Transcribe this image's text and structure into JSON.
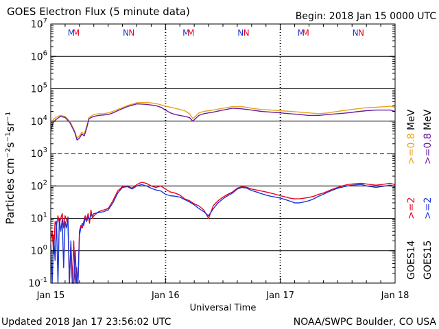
{
  "header": {
    "title": "GOES Electron Flux (5 minute data)",
    "begin": "Begin: 2018 Jan 15 0000 UTC"
  },
  "footer": {
    "updated": "Updated 2018 Jan 17 23:56:02 UTC",
    "credit": "NOAA/SWPC Boulder, CO USA"
  },
  "chart_data": {
    "type": "line",
    "title": "GOES Electron Flux (5 minute data)",
    "xlabel": "Universal Time",
    "ylabel": "Particles cm⁻²s⁻¹sr⁻¹",
    "yscale": "log",
    "ylim": [
      0.1,
      10000000
    ],
    "xlim": [
      0,
      72
    ],
    "x_units": "hours since 2018 Jan 15 0000 UTC",
    "x_tick_labels": [
      {
        "x": 0,
        "label": "Jan 15"
      },
      {
        "x": 24,
        "label": "Jan 16"
      },
      {
        "x": 48,
        "label": "Jan 17"
      },
      {
        "x": 72,
        "label": "Jan 18"
      }
    ],
    "y_ticks": [
      {
        "value": 0.1,
        "base": "10",
        "exp": "-1"
      },
      {
        "value": 1,
        "base": "10",
        "exp": "0"
      },
      {
        "value": 10,
        "base": "10",
        "exp": "1"
      },
      {
        "value": 100,
        "base": "10",
        "exp": "2"
      },
      {
        "value": 1000,
        "base": "10",
        "exp": "3"
      },
      {
        "value": 10000,
        "base": "10",
        "exp": "4"
      },
      {
        "value": 100000,
        "base": "10",
        "exp": "5"
      },
      {
        "value": 1000000,
        "base": "10",
        "exp": "6"
      },
      {
        "value": 10000000,
        "base": "10",
        "exp": "7"
      }
    ],
    "threshold_line": 1000,
    "grid": true,
    "legend": {
      "placement": "right-vertical",
      "entries": [
        {
          "satellite": "GOES14",
          "range": ">=2",
          "color": "#e8001c"
        },
        {
          "satellite": "GOES15",
          "range": ">=2",
          "color": "#1a35d8"
        },
        {
          "range": ">=0.8 MeV",
          "color": "#e8a317"
        },
        {
          "range": ">=0.8 MeV",
          "color": "#6a1aa8"
        }
      ],
      "sat_labels": [
        "GOES14",
        "GOES15"
      ],
      "range_labels": [
        ">=2",
        ">=2",
        ">=0.8",
        ">=0.8"
      ],
      "unit_labels": [
        "MeV",
        "MeV"
      ]
    },
    "markers": [
      {
        "x": 4.3,
        "label": "M",
        "color": "#1a35d8"
      },
      {
        "x": 5.3,
        "label": "M",
        "color": "#e8001c"
      },
      {
        "x": 15.7,
        "label": "N",
        "color": "#1a35d8"
      },
      {
        "x": 16.9,
        "label": "N",
        "color": "#e8001c"
      },
      {
        "x": 28.3,
        "label": "M",
        "color": "#1a35d8"
      },
      {
        "x": 29.3,
        "label": "M",
        "color": "#e8001c"
      },
      {
        "x": 39.7,
        "label": "N",
        "color": "#1a35d8"
      },
      {
        "x": 40.9,
        "label": "N",
        "color": "#e8001c"
      },
      {
        "x": 52.3,
        "label": "M",
        "color": "#1a35d8"
      },
      {
        "x": 53.3,
        "label": "M",
        "color": "#e8001c"
      },
      {
        "x": 63.7,
        "label": "N",
        "color": "#1a35d8"
      },
      {
        "x": 64.9,
        "label": "N",
        "color": "#e8001c"
      }
    ],
    "series": [
      {
        "name": "GOES14 >=0.8 MeV",
        "color": "#e8a317",
        "x": [
          0,
          0.5,
          1,
          2,
          3,
          4,
          5,
          5.5,
          6,
          6.5,
          7,
          7.5,
          8,
          9,
          10,
          11,
          12,
          13,
          14,
          16,
          18,
          20,
          22,
          23,
          24,
          25,
          26,
          27,
          28,
          29,
          29.7,
          30,
          31,
          32,
          33,
          34,
          36,
          38,
          40,
          42,
          44,
          46,
          48,
          50,
          52,
          54,
          56,
          58,
          60,
          62,
          64,
          66,
          68,
          70,
          71,
          72
        ],
        "y": [
          7000,
          11000,
          13000,
          15000,
          14000,
          10000,
          5000,
          3000,
          3500,
          4500,
          4000,
          7000,
          13000,
          16000,
          17000,
          17000,
          18000,
          20000,
          23000,
          30000,
          37000,
          38000,
          35000,
          32000,
          29000,
          27000,
          25000,
          23000,
          21000,
          17000,
          12000,
          13000,
          18000,
          20000,
          21000,
          22000,
          25000,
          28000,
          28000,
          25000,
          23000,
          22000,
          21000,
          20000,
          19000,
          18000,
          17000,
          18000,
          20000,
          22000,
          24000,
          26000,
          27000,
          28000,
          29000,
          27000
        ]
      },
      {
        "name": "GOES15 >=0.8 MeV",
        "color": "#6a1aa8",
        "x": [
          0,
          0.5,
          1,
          2,
          3,
          4,
          5,
          5.5,
          6,
          6.5,
          7,
          7.5,
          8,
          9,
          10,
          11,
          12,
          13,
          14,
          16,
          18,
          20,
          22,
          23,
          24,
          25,
          26,
          27,
          28,
          29,
          29.7,
          30,
          31,
          32,
          33,
          34,
          36,
          38,
          40,
          42,
          44,
          46,
          48,
          50,
          52,
          54,
          56,
          58,
          60,
          62,
          64,
          66,
          68,
          70,
          71,
          72
        ],
        "y": [
          5000,
          9000,
          11000,
          14000,
          13000,
          9000,
          4500,
          2600,
          3000,
          4000,
          3500,
          6000,
          12000,
          14000,
          15000,
          15500,
          16000,
          18000,
          21000,
          28000,
          34000,
          33000,
          30000,
          27000,
          22000,
          18000,
          16000,
          15000,
          14000,
          13000,
          10000,
          11000,
          15000,
          17000,
          18000,
          19000,
          22000,
          25000,
          24000,
          22000,
          20000,
          19000,
          18000,
          17000,
          16000,
          15000,
          15000,
          16000,
          17000,
          18000,
          19500,
          21000,
          22000,
          22000,
          22000,
          20000
        ]
      },
      {
        "name": "GOES14 >=2 MeV",
        "color": "#e8001c",
        "x": [
          0,
          0.3,
          0.6,
          0.9,
          1.2,
          1.5,
          1.8,
          2.1,
          2.4,
          2.7,
          3,
          3.3,
          3.6,
          3.9,
          4.2,
          4.5,
          4.8,
          5.1,
          5.4,
          5.7,
          6,
          6.3,
          6.6,
          6.9,
          7.2,
          7.5,
          7.8,
          8.1,
          8.4,
          8.7,
          9,
          10,
          11,
          12,
          13,
          14,
          15,
          16,
          17,
          18,
          19,
          20,
          21,
          22,
          23,
          24,
          25,
          26,
          27,
          28,
          29,
          30,
          31,
          32,
          33,
          34,
          35,
          36,
          37,
          38,
          39,
          40,
          41,
          42,
          43,
          44,
          45,
          46,
          47,
          48,
          49,
          50,
          51,
          52,
          53,
          54,
          55,
          56,
          57,
          58,
          59,
          60,
          61,
          62,
          63,
          64,
          65,
          66,
          67,
          68,
          69,
          70,
          71,
          72
        ],
        "y": [
          2,
          4,
          0.8,
          8,
          6,
          12,
          7,
          10,
          14,
          5,
          12,
          9,
          6,
          0.1,
          1.5,
          0.1,
          2,
          0.1,
          0.3,
          0.1,
          4,
          6,
          5,
          8,
          12,
          9,
          14,
          7,
          18,
          10,
          12,
          16,
          18,
          20,
          35,
          70,
          95,
          100,
          85,
          110,
          130,
          120,
          100,
          90,
          100,
          80,
          65,
          60,
          52,
          40,
          35,
          28,
          24,
          18,
          10,
          25,
          35,
          45,
          55,
          65,
          85,
          95,
          90,
          80,
          75,
          70,
          65,
          60,
          55,
          50,
          46,
          42,
          40,
          40,
          42,
          44,
          48,
          55,
          60,
          70,
          80,
          90,
          100,
          110,
          115,
          118,
          120,
          115,
          110,
          105,
          110,
          115,
          120,
          110
        ]
      },
      {
        "name": "GOES15 >=2 MeV",
        "color": "#1a35d8",
        "x": [
          0,
          0.3,
          0.6,
          0.9,
          1.2,
          1.5,
          1.8,
          2.1,
          2.4,
          2.7,
          3,
          3.3,
          3.6,
          3.9,
          4.2,
          4.5,
          4.8,
          5.1,
          5.4,
          5.7,
          6,
          6.3,
          6.6,
          6.9,
          7.2,
          7.5,
          7.8,
          8.1,
          8.4,
          8.7,
          9,
          10,
          11,
          12,
          13,
          14,
          15,
          16,
          17,
          18,
          19,
          20,
          21,
          22,
          23,
          24,
          25,
          26,
          27,
          28,
          29,
          30,
          31,
          32,
          33,
          34,
          35,
          36,
          37,
          38,
          39,
          40,
          41,
          42,
          43,
          44,
          45,
          46,
          47,
          48,
          49,
          50,
          51,
          52,
          53,
          54,
          55,
          56,
          57,
          58,
          59,
          60,
          61,
          62,
          63,
          64,
          65,
          66,
          67,
          68,
          69,
          70,
          71,
          72
        ],
        "y": [
          1.5,
          0.1,
          3,
          0.5,
          8,
          0.1,
          10,
          4,
          9,
          0.3,
          8,
          5,
          11,
          0.1,
          2,
          0.1,
          0.1,
          1,
          0.1,
          0.1,
          3,
          5,
          7,
          6,
          10,
          8,
          11,
          9,
          13,
          12,
          14,
          15,
          16,
          18,
          30,
          60,
          90,
          95,
          80,
          100,
          110,
          100,
          85,
          75,
          70,
          55,
          50,
          48,
          45,
          38,
          32,
          26,
          20,
          16,
          12,
          20,
          30,
          40,
          50,
          60,
          80,
          90,
          85,
          72,
          65,
          58,
          52,
          48,
          45,
          42,
          38,
          34,
          30,
          30,
          32,
          35,
          40,
          48,
          55,
          65,
          75,
          85,
          92,
          100,
          105,
          108,
          110,
          100,
          95,
          90,
          95,
          100,
          105,
          95
        ]
      }
    ]
  }
}
